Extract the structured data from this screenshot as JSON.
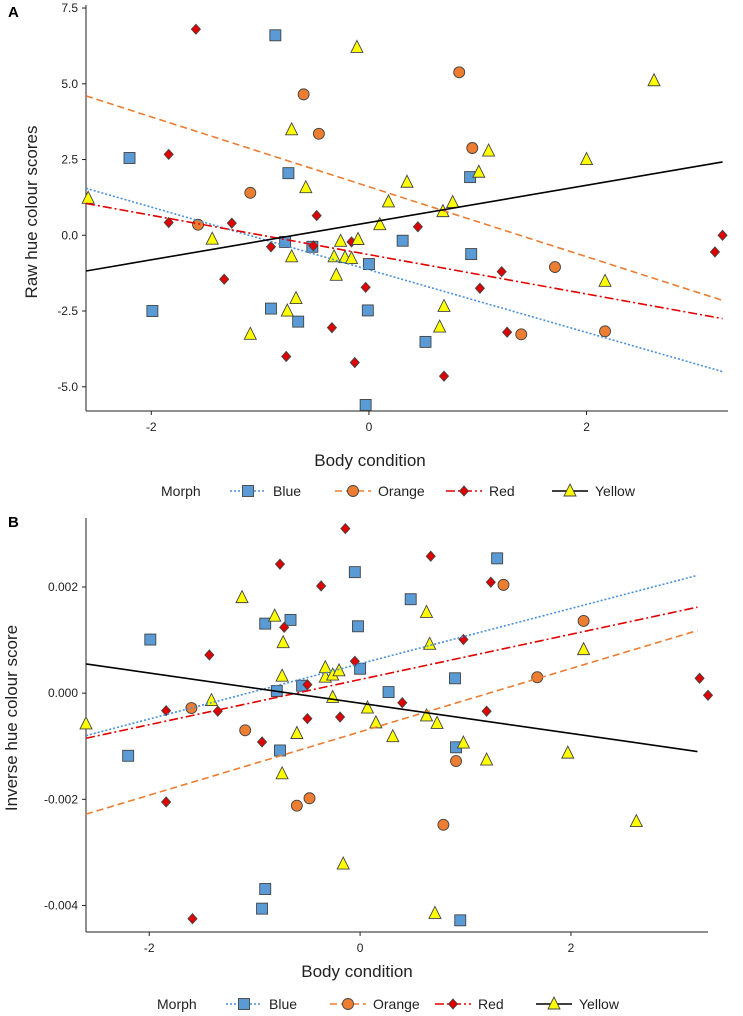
{
  "colors": {
    "Blue": "#5b9bd5",
    "Orange": "#ed7d31",
    "Red": "#e00000",
    "Yellow": "#ffff00",
    "line_Blue": "#4a90d9",
    "line_Orange": "#ed7d31",
    "line_Red": "#e00000",
    "line_Yellow": "#000000"
  },
  "legend": {
    "title": "Morph",
    "entries": [
      "Blue",
      "Orange",
      "Red",
      "Yellow"
    ]
  },
  "chart_data": [
    {
      "panel": "A",
      "type": "scatter",
      "xlabel": "Body condition",
      "ylabel": "Raw hue colour scores",
      "xlim": [
        -2.6,
        3.3
      ],
      "ylim": [
        -5.8,
        7.6
      ],
      "xticks": [
        -2,
        0,
        2
      ],
      "xtick_labels": [
        "-2",
        "0",
        "2"
      ],
      "yticks": [
        -5,
        -2.5,
        0,
        2.5,
        5,
        7.5
      ],
      "ytick_labels": [
        "-5.0",
        "-2.5",
        "0.0",
        "2.5",
        "5.0",
        "7.5"
      ],
      "series": [
        {
          "name": "Blue",
          "marker": "square",
          "points": [
            [
              -2.2,
              2.55
            ],
            [
              -1.99,
              -2.5
            ],
            [
              -0.86,
              6.6
            ],
            [
              -0.77,
              -0.22
            ],
            [
              -0.74,
              2.05
            ],
            [
              -0.9,
              -2.42
            ],
            [
              -0.65,
              -2.85
            ],
            [
              -0.52,
              -0.38
            ],
            [
              -0.03,
              -5.6
            ],
            [
              0,
              -0.95
            ],
            [
              -0.01,
              -2.48
            ],
            [
              0.31,
              -0.18
            ],
            [
              0.52,
              -3.52
            ],
            [
              0.93,
              1.92
            ],
            [
              0.94,
              -0.62
            ]
          ]
        },
        {
          "name": "Orange",
          "marker": "circle",
          "points": [
            [
              -1.57,
              0.35
            ],
            [
              -1.09,
              1.4
            ],
            [
              -0.6,
              4.65
            ],
            [
              -0.46,
              3.35
            ],
            [
              0.83,
              5.38
            ],
            [
              0.95,
              2.88
            ],
            [
              1.4,
              -3.27
            ],
            [
              1.71,
              -1.05
            ],
            [
              2.17,
              -3.17
            ]
          ]
        },
        {
          "name": "Red",
          "marker": "diamond",
          "points": [
            [
              -1.59,
              6.8
            ],
            [
              -1.84,
              2.67
            ],
            [
              -1.84,
              0.42
            ],
            [
              -1.26,
              0.4
            ],
            [
              -1.33,
              -1.45
            ],
            [
              -0.9,
              -0.38
            ],
            [
              -0.76,
              -4.0
            ],
            [
              -0.48,
              0.65
            ],
            [
              -0.51,
              -0.35
            ],
            [
              -0.34,
              -3.05
            ],
            [
              -0.16,
              -0.22
            ],
            [
              -0.13,
              -4.2
            ],
            [
              -0.03,
              -1.72
            ],
            [
              0.45,
              0.28
            ],
            [
              0.69,
              -4.65
            ],
            [
              1.02,
              -1.75
            ],
            [
              1.22,
              -1.2
            ],
            [
              1.27,
              -3.2
            ],
            [
              3.18,
              -0.55
            ],
            [
              3.25,
              0.0
            ]
          ]
        },
        {
          "name": "Yellow",
          "marker": "triangle",
          "points": [
            [
              -2.58,
              1.22
            ],
            [
              -1.44,
              -0.13
            ],
            [
              -1.09,
              -3.27
            ],
            [
              -0.75,
              -2.5
            ],
            [
              -0.71,
              -0.71
            ],
            [
              -0.71,
              3.48
            ],
            [
              -0.67,
              -2.09
            ],
            [
              -0.58,
              1.57
            ],
            [
              -0.32,
              -0.71
            ],
            [
              -0.3,
              -1.32
            ],
            [
              -0.26,
              -0.2
            ],
            [
              -0.22,
              -0.74
            ],
            [
              -0.16,
              -0.77
            ],
            [
              -0.11,
              6.2
            ],
            [
              -0.1,
              -0.14
            ],
            [
              0.1,
              0.35
            ],
            [
              0.18,
              1.1
            ],
            [
              0.35,
              1.75
            ],
            [
              0.65,
              -3.03
            ],
            [
              0.68,
              0.78
            ],
            [
              0.69,
              -2.35
            ],
            [
              0.77,
              1.08
            ],
            [
              1.01,
              2.08
            ],
            [
              1.1,
              2.78
            ],
            [
              2.0,
              2.5
            ],
            [
              2.17,
              -1.52
            ],
            [
              2.62,
              5.1
            ]
          ]
        }
      ],
      "fit_lines": [
        {
          "name": "Blue",
          "style": "dotted",
          "x": [
            -2.6,
            3.25
          ],
          "y": [
            1.55,
            -4.5
          ]
        },
        {
          "name": "Orange",
          "style": "dashed",
          "x": [
            -2.6,
            3.25
          ],
          "y": [
            4.6,
            -2.15
          ]
        },
        {
          "name": "Red",
          "style": "dashdot",
          "x": [
            -2.6,
            3.25
          ],
          "y": [
            1.05,
            -2.75
          ]
        },
        {
          "name": "Yellow",
          "style": "solid",
          "x": [
            -2.6,
            3.25
          ],
          "y": [
            -1.18,
            2.42
          ]
        }
      ]
    },
    {
      "panel": "B",
      "type": "scatter",
      "xlabel": "Body condition",
      "ylabel": "Inverse hue colour score",
      "xlim": [
        -2.6,
        3.3
      ],
      "ylim": [
        -0.0045,
        0.0033
      ],
      "xticks": [
        -2,
        0,
        2
      ],
      "xtick_labels": [
        "-2",
        "0",
        "2"
      ],
      "yticks": [
        -0.004,
        -0.002,
        0,
        0.002
      ],
      "ytick_labels": [
        "-0.004",
        "-0.002",
        "0.000",
        "0.002"
      ],
      "series": [
        {
          "name": "Blue",
          "marker": "square",
          "points": [
            [
              -2.2,
              -0.00118
            ],
            [
              -1.99,
              0.00101
            ],
            [
              -0.93,
              -0.00406
            ],
            [
              -0.9,
              -0.00369
            ],
            [
              -0.9,
              0.00131
            ],
            [
              -0.79,
              4e-05
            ],
            [
              -0.76,
              -0.00108
            ],
            [
              -0.66,
              0.00138
            ],
            [
              -0.55,
              0.00014
            ],
            [
              -0.05,
              0.00228
            ],
            [
              -0.02,
              0.00126
            ],
            [
              0.0,
              0.00046
            ],
            [
              0.27,
              2e-05
            ],
            [
              0.48,
              0.00177
            ],
            [
              0.9,
              0.00028
            ],
            [
              0.91,
              -0.00102
            ],
            [
              0.95,
              -0.00428
            ],
            [
              1.3,
              0.00254
            ]
          ]
        },
        {
          "name": "Orange",
          "marker": "circle",
          "points": [
            [
              -1.6,
              -0.00028
            ],
            [
              -1.09,
              -0.0007
            ],
            [
              -0.6,
              -0.00212
            ],
            [
              -0.48,
              -0.00198
            ],
            [
              0.79,
              -0.00248
            ],
            [
              0.91,
              -0.00128
            ],
            [
              1.36,
              0.00204
            ],
            [
              1.68,
              0.0003
            ],
            [
              2.12,
              0.00136
            ]
          ]
        },
        {
          "name": "Red",
          "marker": "diamond",
          "points": [
            [
              -1.59,
              -0.00425
            ],
            [
              -1.84,
              -0.00205
            ],
            [
              -1.84,
              -0.00033
            ],
            [
              -1.35,
              -0.00034
            ],
            [
              -1.43,
              0.00072
            ],
            [
              -0.93,
              -0.00092
            ],
            [
              -0.76,
              0.00243
            ],
            [
              -0.72,
              0.00124
            ],
            [
              -0.5,
              0.00016
            ],
            [
              -0.5,
              -0.00048
            ],
            [
              -0.37,
              0.00202
            ],
            [
              -0.19,
              -0.00045
            ],
            [
              -0.14,
              0.0031
            ],
            [
              -0.05,
              0.0006
            ],
            [
              0.4,
              -0.00018
            ],
            [
              0.67,
              0.00258
            ],
            [
              0.98,
              0.00101
            ],
            [
              1.2,
              -0.00034
            ],
            [
              1.24,
              0.00209
            ],
            [
              3.22,
              0.00028
            ],
            [
              3.3,
              -4e-05
            ]
          ]
        },
        {
          "name": "Yellow",
          "marker": "triangle",
          "points": [
            [
              -2.6,
              -0.00058
            ],
            [
              -1.41,
              -0.00014
            ],
            [
              -1.12,
              0.0018
            ],
            [
              -0.81,
              0.00145
            ],
            [
              -0.73,
              0.00095
            ],
            [
              -0.74,
              0.00032
            ],
            [
              -0.74,
              -0.00152
            ],
            [
              -0.6,
              -0.00076
            ],
            [
              -0.33,
              0.0003
            ],
            [
              -0.33,
              0.00048
            ],
            [
              -0.26,
              0.00034
            ],
            [
              -0.26,
              -8e-05
            ],
            [
              -0.2,
              0.00042
            ],
            [
              -0.16,
              -0.00322
            ],
            [
              0.07,
              -0.00028
            ],
            [
              0.15,
              -0.00056
            ],
            [
              0.31,
              -0.00082
            ],
            [
              0.63,
              -0.00043
            ],
            [
              0.63,
              0.00152
            ],
            [
              0.66,
              0.00092
            ],
            [
              0.71,
              -0.00415
            ],
            [
              0.73,
              -0.00057
            ],
            [
              0.98,
              -0.00094
            ],
            [
              1.2,
              -0.00126
            ],
            [
              1.97,
              -0.00113
            ],
            [
              2.12,
              0.00082
            ],
            [
              2.62,
              -0.00242
            ]
          ]
        }
      ],
      "fit_lines": [
        {
          "name": "Blue",
          "style": "dotted",
          "x": [
            -2.6,
            3.2
          ],
          "y": [
            -0.0008,
            0.00222
          ]
        },
        {
          "name": "Orange",
          "style": "dashed",
          "x": [
            -2.6,
            3.2
          ],
          "y": [
            -0.00228,
            0.00118
          ]
        },
        {
          "name": "Red",
          "style": "dashdot",
          "x": [
            -2.6,
            3.2
          ],
          "y": [
            -0.00085,
            0.00162
          ]
        },
        {
          "name": "Yellow",
          "style": "solid",
          "x": [
            -2.6,
            3.2
          ],
          "y": [
            0.00055,
            -0.0011
          ]
        }
      ]
    }
  ]
}
